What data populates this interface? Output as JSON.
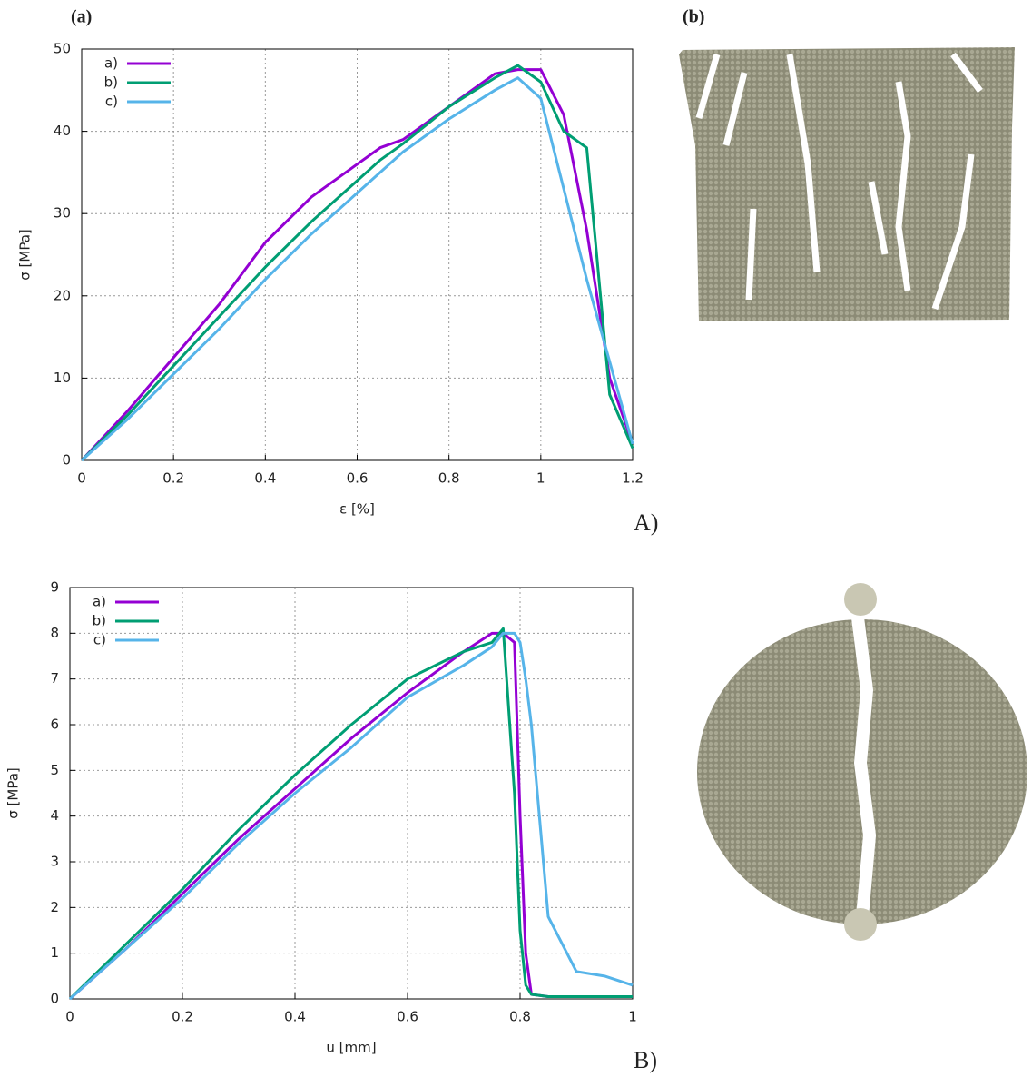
{
  "labels": {
    "a": "(a)",
    "b": "(b)",
    "A": "A)",
    "B": "B)"
  },
  "chart_data": [
    {
      "type": "line",
      "x_label": "ε [%]",
      "y_label": "σ [MPa]",
      "x": [
        0,
        0.1,
        0.2,
        0.3,
        0.4,
        0.5,
        0.6,
        0.65,
        0.7,
        0.8,
        0.9,
        0.95,
        1.0,
        1.05,
        1.1,
        1.15,
        1.2
      ],
      "series": [
        {
          "name": "a)",
          "color": "#9400d3",
          "values": [
            0,
            6,
            12.5,
            19,
            26.5,
            32,
            36,
            38,
            39,
            43,
            47,
            47.5,
            47.5,
            42,
            28,
            10,
            2
          ]
        },
        {
          "name": "b)",
          "color": "#009e73",
          "values": [
            0,
            5.5,
            11.5,
            17.5,
            23.5,
            29,
            34,
            36.5,
            38.5,
            43,
            46.5,
            48,
            46,
            40,
            38,
            8,
            1.5
          ]
        },
        {
          "name": "c)",
          "color": "#56b4e9",
          "values": [
            0,
            5,
            10.5,
            16,
            22,
            27.5,
            32.5,
            35,
            37.5,
            41.5,
            45,
            46.5,
            44,
            33,
            22,
            12,
            2
          ]
        }
      ],
      "xlim": [
        0,
        1.2
      ],
      "xticks": [
        0,
        0.2,
        0.4,
        0.6,
        0.8,
        1,
        1.2
      ],
      "ylim": [
        0,
        50
      ],
      "yticks": [
        0,
        10,
        20,
        30,
        40,
        50
      ],
      "grid": true,
      "legend": "upper left"
    },
    {
      "type": "line",
      "x_label": "u [mm]",
      "y_label": "σ [MPa]",
      "x": [
        0,
        0.1,
        0.2,
        0.3,
        0.4,
        0.5,
        0.6,
        0.7,
        0.75,
        0.77,
        0.79,
        0.8,
        0.81,
        0.82,
        0.85,
        0.9,
        0.95,
        1.0
      ],
      "series": [
        {
          "name": "a)",
          "color": "#9400d3",
          "values": [
            0,
            1.1,
            2.3,
            3.5,
            4.6,
            5.7,
            6.7,
            7.6,
            8.0,
            8.0,
            7.8,
            4,
            1,
            0.1,
            0.05,
            0.05,
            0.05,
            0.05
          ]
        },
        {
          "name": "b)",
          "color": "#009e73",
          "values": [
            0,
            1.2,
            2.4,
            3.7,
            4.9,
            6.0,
            7.0,
            7.6,
            7.8,
            8.1,
            4.5,
            1.5,
            0.3,
            0.1,
            0.05,
            0.05,
            0.05,
            0.05
          ]
        },
        {
          "name": "c)",
          "color": "#56b4e9",
          "values": [
            0,
            1.1,
            2.2,
            3.4,
            4.5,
            5.5,
            6.6,
            7.3,
            7.7,
            8.0,
            8.0,
            7.8,
            7.0,
            6.0,
            1.8,
            0.6,
            0.5,
            0.3
          ]
        }
      ],
      "xlim": [
        0,
        1
      ],
      "xticks": [
        0,
        0.2,
        0.4,
        0.6,
        0.8,
        1
      ],
      "ylim": [
        0,
        9
      ],
      "yticks": [
        0,
        1,
        2,
        3,
        4,
        5,
        6,
        7,
        8,
        9
      ],
      "grid": true,
      "legend": "upper left"
    }
  ]
}
